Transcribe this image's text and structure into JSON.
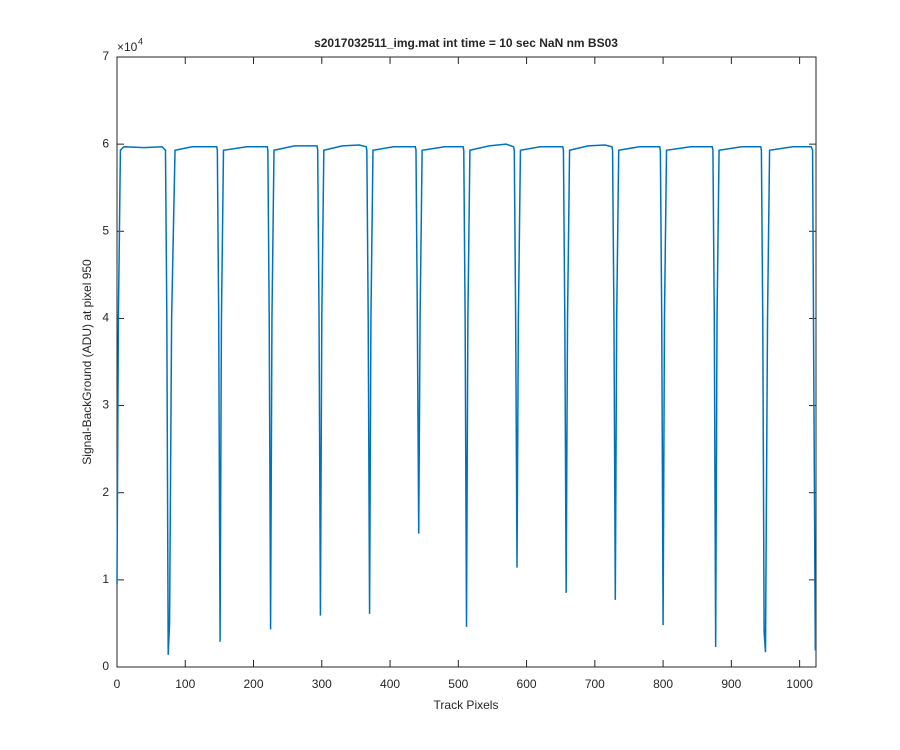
{
  "chart_data": {
    "type": "line",
    "title": "s2017032511_img.mat int time = 10 sec  NaN nm BS03",
    "xlabel": "Track Pixels",
    "ylabel": "Signal-BackGround (ADU) at pixel 950",
    "y_multiplier": {
      "base": "×10",
      "exponent": "4"
    },
    "color": "#0072bd",
    "xlim": [
      0,
      1024
    ],
    "xticks": [
      0,
      100,
      200,
      300,
      400,
      500,
      600,
      700,
      800,
      900,
      1000
    ],
    "ylim": [
      0,
      70000
    ],
    "yticks": [
      {
        "value": 0,
        "label": "0"
      },
      {
        "value": 10000,
        "label": "1"
      },
      {
        "value": 20000,
        "label": "2"
      },
      {
        "value": 30000,
        "label": "3"
      },
      {
        "value": 40000,
        "label": "4"
      },
      {
        "value": 50000,
        "label": "5"
      },
      {
        "value": 60000,
        "label": "6"
      },
      {
        "value": 70000,
        "label": "7"
      }
    ],
    "x": [
      0,
      2,
      5,
      10,
      40,
      66,
      71,
      73,
      75,
      77,
      80,
      85,
      110,
      146,
      147,
      149,
      151,
      153,
      156,
      190,
      220,
      221,
      223,
      225,
      227,
      230,
      260,
      293,
      294,
      296,
      298,
      300,
      303,
      330,
      355,
      365,
      366,
      368,
      370,
      372,
      375,
      405,
      437,
      438,
      440,
      442,
      444,
      447,
      480,
      507,
      508,
      510,
      512,
      514,
      517,
      545,
      570,
      581,
      582,
      584,
      586,
      588,
      591,
      620,
      653,
      654,
      656,
      658,
      660,
      663,
      690,
      715,
      725,
      726,
      728,
      730,
      732,
      735,
      765,
      795,
      796,
      798,
      800,
      802,
      805,
      840,
      872,
      873,
      875,
      877,
      879,
      882,
      915,
      943,
      944,
      946,
      948,
      950,
      953,
      956,
      990,
      1017,
      1019,
      1021,
      1023
    ],
    "values": [
      9500,
      40000,
      59300,
      59700,
      59600,
      59700,
      59300,
      40000,
      1400,
      5000,
      40000,
      59300,
      59700,
      59700,
      59300,
      40000,
      2900,
      40000,
      59300,
      59700,
      59700,
      59300,
      40000,
      4300,
      40000,
      59300,
      59800,
      59800,
      59300,
      40000,
      5900,
      40000,
      59300,
      59800,
      59900,
      59700,
      59300,
      40000,
      6100,
      40000,
      59300,
      59700,
      59700,
      59300,
      40000,
      15300,
      40000,
      59300,
      59700,
      59700,
      59300,
      40000,
      4600,
      40000,
      59300,
      59800,
      60000,
      59700,
      59300,
      40000,
      11400,
      40000,
      59300,
      59700,
      59700,
      59300,
      40000,
      8500,
      40000,
      59300,
      59800,
      59900,
      59700,
      59300,
      40000,
      7700,
      40000,
      59300,
      59700,
      59700,
      59300,
      40000,
      4800,
      40000,
      59300,
      59700,
      59700,
      59300,
      40000,
      2300,
      40000,
      59300,
      59700,
      59700,
      59300,
      40000,
      4000,
      1700,
      40000,
      59300,
      59700,
      59700,
      59300,
      30000,
      1900
    ]
  }
}
